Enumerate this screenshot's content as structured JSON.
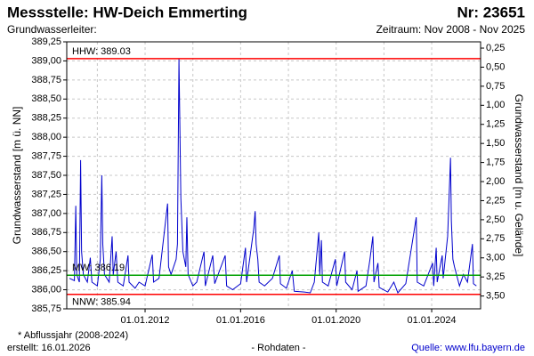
{
  "chart_data": {
    "type": "line",
    "title": "Messstelle: HW-Deich Emmerting",
    "number": "Nr: 23651",
    "subtitle_left": "Grundwasserleiter:",
    "subtitle_right": "Zeitraum: Nov 2008 - Nov 2025",
    "ylabel": "Grundwasserstand [m ü. NN]",
    "y2label": "Grundwasserstand [m u. Gelände]",
    "footnote": "* Abflussjahr (2008-2024)",
    "created": "erstellt:  16.01.2026",
    "status": "- Rohdaten -",
    "source": "Quelle: www.lfu.bayern.de",
    "grid": true,
    "xlim": [
      "2008-09-20",
      "2026-01-18"
    ],
    "xticks": [
      {
        "value": "2012-01-01",
        "label": "01.01.2012"
      },
      {
        "value": "2016-01-01",
        "label": "01.01.2016"
      },
      {
        "value": "2020-01-01",
        "label": "01.01.2020"
      },
      {
        "value": "2024-01-01",
        "label": "01.01.2024"
      }
    ],
    "xgrid_minor": [
      "2010-01-01",
      "2014-01-01",
      "2018-01-01",
      "2022-01-01"
    ],
    "ylim": [
      385.75,
      389.25
    ],
    "yticks": [
      {
        "value": 389.25,
        "label": "389,25"
      },
      {
        "value": 389.0,
        "label": "389,00"
      },
      {
        "value": 388.75,
        "label": "388,75"
      },
      {
        "value": 388.5,
        "label": "388,50"
      },
      {
        "value": 388.25,
        "label": "388,25"
      },
      {
        "value": 388.0,
        "label": "388,00"
      },
      {
        "value": 387.75,
        "label": "387,75"
      },
      {
        "value": 387.5,
        "label": "387,50"
      },
      {
        "value": 387.25,
        "label": "387,25"
      },
      {
        "value": 387.0,
        "label": "387,00"
      },
      {
        "value": 386.75,
        "label": "386,75"
      },
      {
        "value": 386.5,
        "label": "386,50"
      },
      {
        "value": 386.25,
        "label": "386,25"
      },
      {
        "value": 386.0,
        "label": "386,00"
      },
      {
        "value": 385.75,
        "label": "385,75"
      }
    ],
    "y2lim": [
      3.668,
      0.168
    ],
    "y2ticks": [
      {
        "value": 0.25,
        "label": "0,25"
      },
      {
        "value": 0.5,
        "label": "0,50"
      },
      {
        "value": 0.75,
        "label": "0,75"
      },
      {
        "value": 1.0,
        "label": "1,00"
      },
      {
        "value": 1.25,
        "label": "1,25"
      },
      {
        "value": 1.5,
        "label": "1,50"
      },
      {
        "value": 1.75,
        "label": "1,75"
      },
      {
        "value": 2.0,
        "label": "2,00"
      },
      {
        "value": 2.25,
        "label": "2,25"
      },
      {
        "value": 2.5,
        "label": "2,50"
      },
      {
        "value": 2.75,
        "label": "2,75"
      },
      {
        "value": 3.0,
        "label": "3,00"
      },
      {
        "value": 3.25,
        "label": "3,25"
      },
      {
        "value": 3.5,
        "label": "3,50"
      }
    ],
    "reference_lines": [
      {
        "value": 389.03,
        "label": "HHW: 389.03",
        "color": "#ff0000"
      },
      {
        "value": 386.19,
        "label": "MW: 386.19",
        "color": "#00a000"
      },
      {
        "value": 385.94,
        "label": "NNW: 385.94",
        "color": "#ff0000"
      }
    ],
    "x": [
      "2008-11-01",
      "2009-01-15",
      "2009-02-05",
      "2009-02-20",
      "2009-04-01",
      "2009-04-20",
      "2009-05-05",
      "2009-06-01",
      "2009-08-01",
      "2009-09-15",
      "2009-10-10",
      "2010-01-01",
      "2010-02-15",
      "2010-03-10",
      "2010-03-25",
      "2010-04-20",
      "2010-07-01",
      "2010-08-15",
      "2010-09-01",
      "2010-10-15",
      "2010-11-10",
      "2011-02-01",
      "2011-04-15",
      "2011-05-01",
      "2011-08-01",
      "2011-10-01",
      "2012-01-01",
      "2012-04-20",
      "2012-05-10",
      "2012-08-01",
      "2012-12-10",
      "2012-12-25",
      "2013-02-01",
      "2013-04-20",
      "2013-05-10",
      "2013-06-02",
      "2013-06-12",
      "2013-07-01",
      "2013-08-01",
      "2013-09-15",
      "2013-10-01",
      "2013-10-20",
      "2014-01-01",
      "2014-03-01",
      "2014-06-20",
      "2014-07-10",
      "2014-11-01",
      "2014-12-01",
      "2015-05-10",
      "2015-06-01",
      "2015-09-01",
      "2016-01-01",
      "2016-03-15",
      "2016-04-01",
      "2016-07-20",
      "2016-08-10",
      "2016-08-25",
      "2016-09-20",
      "2016-10-10",
      "2017-01-01",
      "2017-05-01",
      "2017-08-15",
      "2017-09-01",
      "2017-12-01",
      "2018-03-01",
      "2018-04-01",
      "2018-09-01",
      "2018-12-01",
      "2019-02-01",
      "2019-04-10",
      "2019-04-25",
      "2019-05-20",
      "2019-06-05",
      "2019-09-01",
      "2019-12-20",
      "2020-01-10",
      "2020-05-10",
      "2020-05-25",
      "2020-09-01",
      "2020-11-15",
      "2020-12-01",
      "2021-04-01",
      "2021-06-01",
      "2021-07-15",
      "2021-08-01",
      "2021-10-01",
      "2021-10-20",
      "2022-03-01",
      "2022-06-01",
      "2022-08-01",
      "2022-12-01",
      "2023-05-10",
      "2023-05-25",
      "2023-09-01",
      "2024-01-15",
      "2024-02-01",
      "2024-03-10",
      "2024-03-25",
      "2024-06-10",
      "2024-06-25",
      "2024-09-01",
      "2024-10-15",
      "2024-10-28",
      "2024-11-20",
      "2024-12-15",
      "2025-03-01",
      "2025-05-01",
      "2025-07-01",
      "2025-09-15",
      "2025-10-01",
      "2025-11-15"
    ],
    "series": [
      {
        "color": "#0000cc",
        "values": [
          386.15,
          386.12,
          387.1,
          386.2,
          386.1,
          387.7,
          386.5,
          386.2,
          386.1,
          386.42,
          386.1,
          386.05,
          386.4,
          387.5,
          386.6,
          386.2,
          386.1,
          386.7,
          386.2,
          386.5,
          386.1,
          386.05,
          386.45,
          386.1,
          386.02,
          386.1,
          386.05,
          386.46,
          386.1,
          386.15,
          387.13,
          386.3,
          386.2,
          386.4,
          386.6,
          389.03,
          388.4,
          387.2,
          386.5,
          386.3,
          386.95,
          386.2,
          386.05,
          386.1,
          386.5,
          386.05,
          386.45,
          386.08,
          386.45,
          386.05,
          386.0,
          386.08,
          386.55,
          386.1,
          386.8,
          387.03,
          386.6,
          386.4,
          386.1,
          386.05,
          386.15,
          386.45,
          386.08,
          386.02,
          386.25,
          385.98,
          385.97,
          385.96,
          386.1,
          386.75,
          386.2,
          386.65,
          386.1,
          386.05,
          386.4,
          386.05,
          386.5,
          386.1,
          386.0,
          386.25,
          385.98,
          386.05,
          386.4,
          386.7,
          386.1,
          386.35,
          386.03,
          385.97,
          386.1,
          385.96,
          386.08,
          386.95,
          386.1,
          386.05,
          386.35,
          386.05,
          386.55,
          386.1,
          386.45,
          386.15,
          386.7,
          387.73,
          386.9,
          386.4,
          386.3,
          386.05,
          386.2,
          386.1,
          386.6,
          386.08,
          386.05
        ]
      }
    ]
  }
}
